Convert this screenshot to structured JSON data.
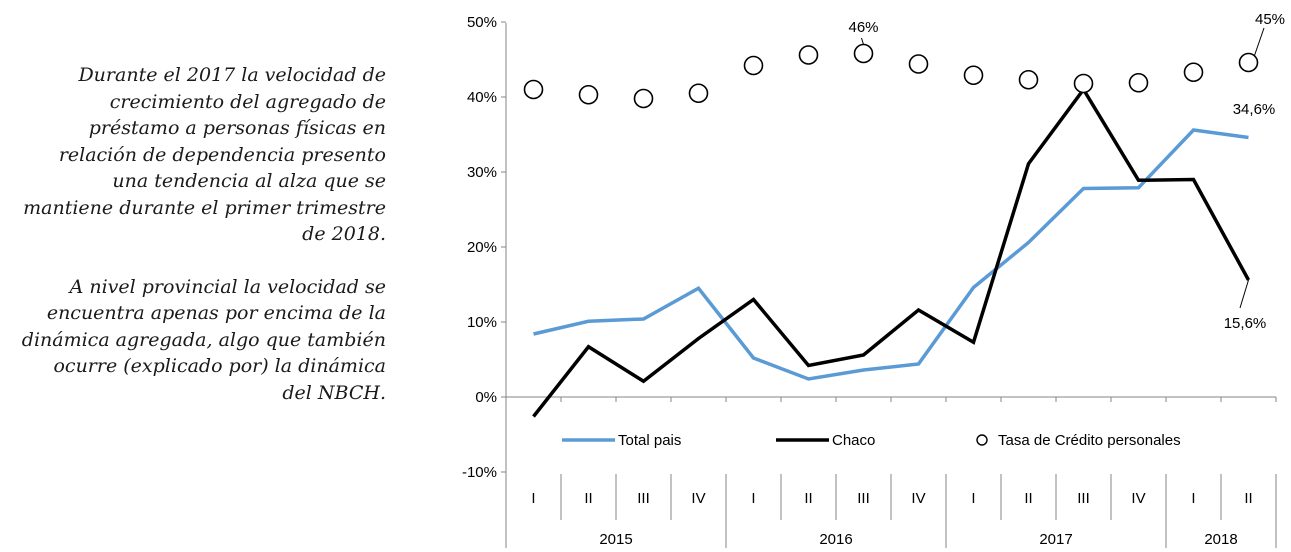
{
  "commentary": {
    "paragraph_1": "Durante el 2017 la velocidad de crecimiento del agregado de préstamo a personas físicas en relación de dependencia presento una tendencia al alza que se mantiene durante el primer trimestre de 2018.",
    "paragraph_2": "A nivel provincial la velocidad se encuentra apenas por encima de la dinámica agregada, algo que también ocurre (explicado por) la dinámica del NBCH."
  },
  "chart_data": {
    "type": "line",
    "categories": [
      "I",
      "II",
      "III",
      "IV",
      "I",
      "II",
      "III",
      "IV",
      "I",
      "II",
      "III",
      "IV",
      "I",
      "II"
    ],
    "year_groups": [
      {
        "label": "2015",
        "span": 4
      },
      {
        "label": "2016",
        "span": 4
      },
      {
        "label": "2017",
        "span": 4
      },
      {
        "label": "2018",
        "span": 2
      }
    ],
    "ylim": [
      -10,
      50
    ],
    "yticks": [
      "-10%",
      "0%",
      "10%",
      "20%",
      "30%",
      "40%",
      "50%"
    ],
    "series": [
      {
        "name": "Total pais",
        "style": "line",
        "color": "#5b9bd5",
        "values": [
          8.4,
          10.1,
          10.4,
          14.5,
          5.2,
          2.4,
          3.6,
          4.4,
          14.6,
          20.6,
          27.8,
          27.9,
          35.6,
          34.6
        ]
      },
      {
        "name": "Chaco",
        "style": "line",
        "color": "#000000",
        "values": [
          -2.6,
          6.7,
          2.1,
          7.8,
          13.0,
          4.2,
          5.6,
          11.6,
          7.3,
          31.1,
          41.0,
          28.9,
          29.0,
          15.6
        ]
      },
      {
        "name": "Tasa de Crédito personales",
        "style": "markers",
        "color": "#000000",
        "values": [
          41.0,
          40.3,
          39.8,
          40.5,
          44.2,
          45.6,
          45.8,
          44.4,
          42.9,
          42.3,
          41.8,
          41.9,
          43.3,
          44.6
        ]
      }
    ],
    "annotations": [
      "46%",
      "45%",
      "34,6%",
      "15,6%"
    ],
    "legend_position": "inside-bottom",
    "grid": false
  }
}
